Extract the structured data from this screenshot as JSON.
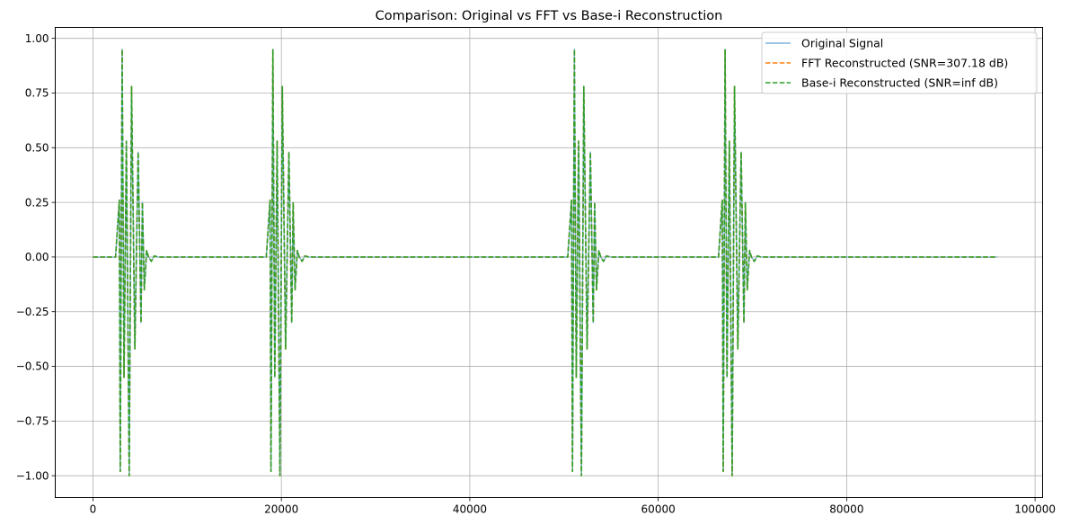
{
  "chart_data": {
    "type": "line",
    "title": "Comparison: Original vs FFT vs Base-i Reconstruction",
    "xlabel": "",
    "ylabel": "",
    "xlim": [
      -4000,
      100800
    ],
    "ylim": [
      -1.1,
      1.05
    ],
    "grid": true,
    "x_ticks": [
      0,
      20000,
      40000,
      60000,
      80000,
      100000
    ],
    "x_tick_labels": [
      "0",
      "20000",
      "40000",
      "60000",
      "80000",
      "100000"
    ],
    "y_ticks": [
      1.0,
      0.75,
      0.5,
      0.25,
      0.0,
      -0.25,
      -0.5,
      -0.75,
      -1.0
    ],
    "y_tick_labels": [
      "1.00",
      "0.75",
      "0.50",
      "0.25",
      "0.00",
      "−0.25",
      "−0.50",
      "−0.75",
      "−1.00"
    ],
    "legend_position": "top-right",
    "x_range": [
      0,
      96000
    ],
    "burst_starts": [
      2400,
      18400,
      50400,
      66400
    ],
    "burst_peak_samples": [
      [
        0,
        0
      ],
      [
        400,
        0.26
      ],
      [
        500,
        -0.98
      ],
      [
        700,
        0.95
      ],
      [
        900,
        -0.55
      ],
      [
        1150,
        0.53
      ],
      [
        1450,
        -1.0
      ],
      [
        1700,
        0.78
      ],
      [
        2050,
        -0.42
      ],
      [
        2400,
        0.48
      ],
      [
        2700,
        -0.3
      ],
      [
        2850,
        0.25
      ],
      [
        3050,
        -0.15
      ],
      [
        3300,
        0.03
      ],
      [
        3500,
        0
      ],
      [
        3800,
        -0.02
      ],
      [
        4100,
        0.005
      ],
      [
        4500,
        0
      ]
    ],
    "series": [
      {
        "name": "Original Signal",
        "color": "#7fb2dc",
        "style": "solid",
        "label": "Original Signal"
      },
      {
        "name": "FFT Reconstructed",
        "color": "#ff7f0e",
        "style": "dashed",
        "label": "FFT Reconstructed (SNR=307.18 dB)"
      },
      {
        "name": "Base-i Reconstructed",
        "color": "#2ca02c",
        "style": "dashed",
        "label": "Base-i Reconstructed (SNR=inf dB)"
      }
    ]
  }
}
